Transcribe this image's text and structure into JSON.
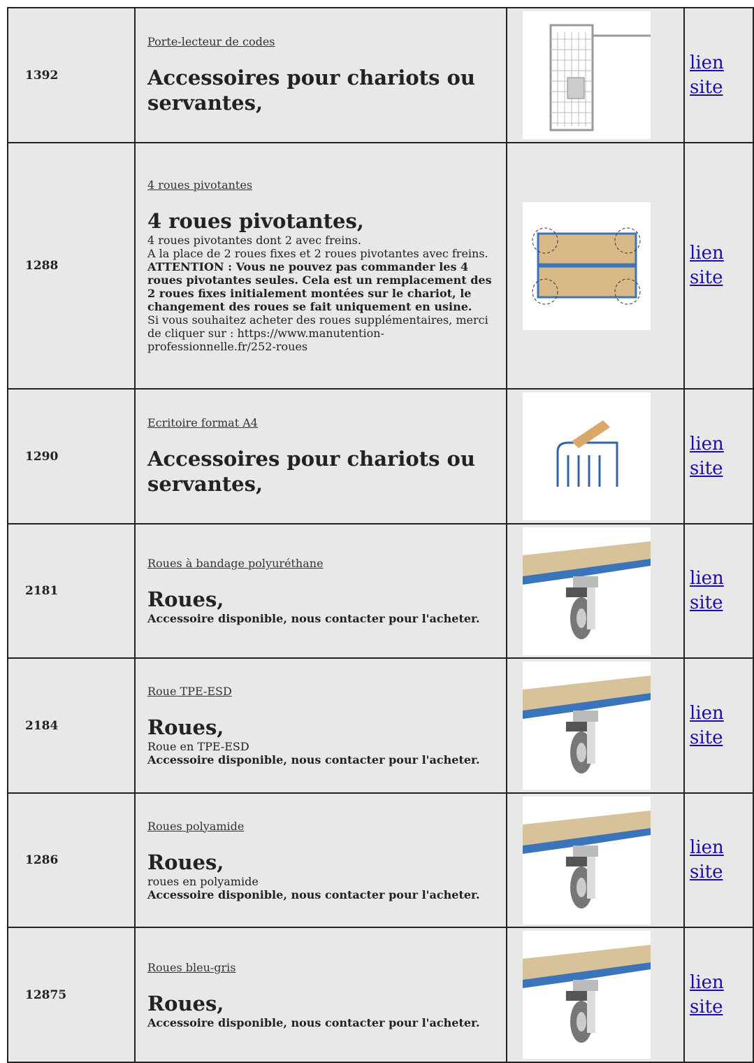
{
  "table": {
    "rows": [
      {
        "id": "1392",
        "title": "Porte-lecteur de codes",
        "heading": "Accessoires pour chariots ou servantes,",
        "description": [],
        "link": "lien site"
      },
      {
        "id": "1288",
        "title": "4 roues pivotantes",
        "heading": "4 roues pivotantes,",
        "description": [
          {
            "text": "4 roues pivotantes dont 2 avec freins.",
            "bold": false
          },
          {
            "text": "A la place de 2 roues fixes et 2 roues pivotantes avec freins.",
            "bold": false
          },
          {
            "text": "ATTENTION : Vous ne pouvez pas commander les 4 roues pivotantes seules. Cela est un remplacement des 2 roues fixes initialement montées sur le chariot, le changement des roues se fait uniquement en usine.",
            "bold": true
          },
          {
            "text": "Si vous souhaitez acheter des roues supplémentaires, merci de cliquer sur : https://www.manutention-professionnelle.fr/252-roues",
            "bold": false
          }
        ],
        "link": "lien site"
      },
      {
        "id": "1290",
        "title": "Ecritoire format A4",
        "heading": "Accessoires pour chariots ou servantes,",
        "description": [],
        "link": "lien site"
      },
      {
        "id": "2181",
        "title": "Roues à bandage polyuréthane",
        "heading": "Roues,",
        "description": [
          {
            "text": "Accessoire disponible, nous contacter pour l'acheter.",
            "bold": true
          }
        ],
        "link": "lien site"
      },
      {
        "id": "2184",
        "title": "Roue TPE-ESD",
        "heading": "Roues,",
        "description": [
          {
            "text": "Roue en TPE-ESD",
            "bold": false
          },
          {
            "text": "Accessoire disponible, nous contacter pour l'acheter.",
            "bold": true
          }
        ],
        "link": "lien site"
      },
      {
        "id": "1286",
        "title": "Roues polyamide",
        "heading": "Roues,",
        "description": [
          {
            "text": "roues en polyamide",
            "bold": false
          },
          {
            "text": "Accessoire disponible, nous contacter pour l'acheter.",
            "bold": true
          }
        ],
        "link": "lien site"
      },
      {
        "id": "12875",
        "title": "Roues bleu-gris",
        "heading": "Roues,",
        "description": [
          {
            "text": "Accessoire disponible, nous contacter pour l'acheter.",
            "bold": true
          }
        ],
        "link": "lien site"
      }
    ]
  }
}
